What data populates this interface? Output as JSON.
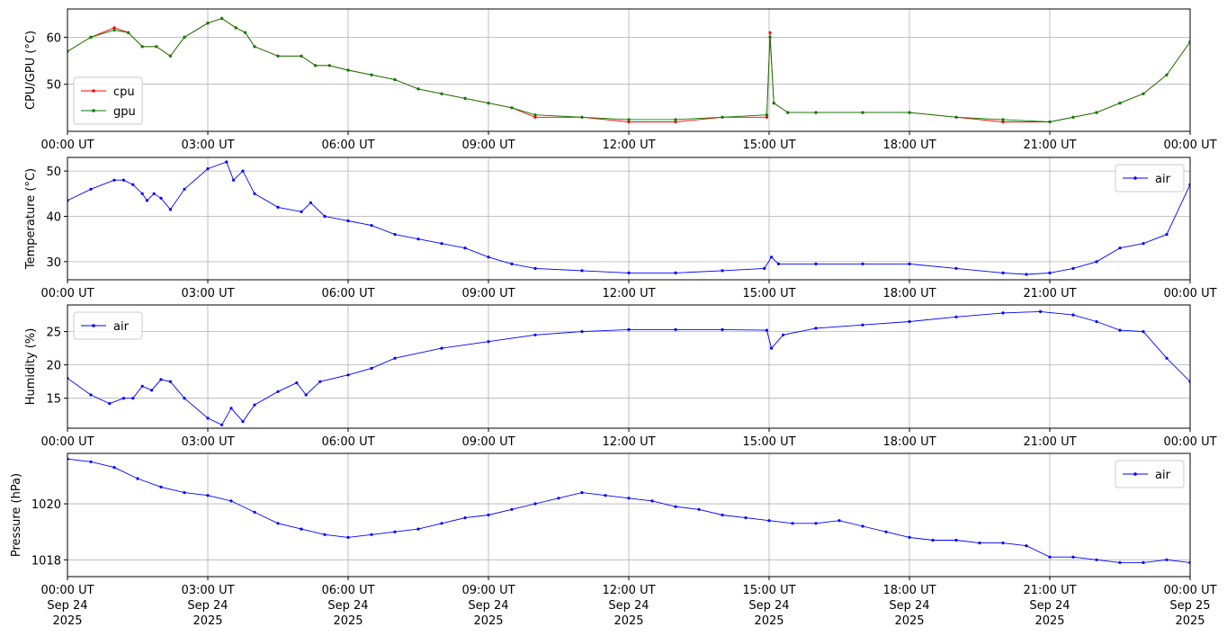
{
  "chart_data": [
    {
      "type": "line",
      "ylabel": "CPU/GPU (°C)",
      "xlim": [
        0,
        24
      ],
      "ylim": [
        40,
        66
      ],
      "yticks": [
        50,
        60
      ],
      "xticks": [
        0,
        3,
        6,
        9,
        12,
        15,
        18,
        21,
        24
      ],
      "xticklabels": [
        "00:00 UT",
        "03:00 UT",
        "06:00 UT",
        "09:00 UT",
        "12:00 UT",
        "15:00 UT",
        "18:00 UT",
        "21:00 UT",
        "00:00 UT"
      ],
      "legend_position": "lower-left",
      "series": [
        {
          "name": "cpu",
          "color": "#ff0000",
          "x": [
            0,
            0.5,
            1,
            1.3,
            1.6,
            1.9,
            2.2,
            2.5,
            3,
            3.3,
            3.6,
            3.8,
            4,
            4.5,
            5,
            5.3,
            5.6,
            6,
            6.5,
            7,
            7.5,
            8,
            8.5,
            9,
            9.5,
            10,
            11,
            12,
            13,
            14,
            14.95,
            15.02,
            15.1,
            15.4,
            16,
            17,
            18,
            19,
            20,
            21,
            21.5,
            22,
            22.5,
            23,
            23.5,
            24
          ],
          "y": [
            57,
            60,
            62,
            61,
            58,
            58,
            56,
            60,
            63,
            64,
            62,
            61,
            58,
            56,
            56,
            54,
            54,
            53,
            52,
            51,
            49,
            48,
            47,
            46,
            45,
            43,
            43,
            42,
            42,
            43,
            43,
            61,
            46,
            44,
            44,
            44,
            44,
            43,
            42,
            42,
            43,
            44,
            46,
            48,
            52,
            59
          ]
        },
        {
          "name": "gpu",
          "color": "#008000",
          "x": [
            0,
            0.5,
            1,
            1.3,
            1.6,
            1.9,
            2.2,
            2.5,
            3,
            3.3,
            3.6,
            3.8,
            4,
            4.5,
            5,
            5.3,
            5.6,
            6,
            6.5,
            7,
            7.5,
            8,
            8.5,
            9,
            9.5,
            10,
            11,
            12,
            13,
            14,
            14.95,
            15.02,
            15.1,
            15.4,
            16,
            17,
            18,
            19,
            20,
            21,
            21.5,
            22,
            22.5,
            23,
            23.5,
            24
          ],
          "y": [
            57,
            60,
            61.5,
            61,
            58,
            58,
            56,
            60,
            63,
            64,
            62,
            61,
            58,
            56,
            56,
            54,
            54,
            53,
            52,
            51,
            49,
            48,
            47,
            46,
            45,
            43.5,
            43,
            42.5,
            42.5,
            43,
            43.5,
            60,
            46,
            44,
            44,
            44,
            44,
            43,
            42.5,
            42,
            43,
            44,
            46,
            48,
            52,
            59
          ]
        }
      ]
    },
    {
      "type": "line",
      "ylabel": "Temperature (°C)",
      "xlim": [
        0,
        24
      ],
      "ylim": [
        26,
        53
      ],
      "yticks": [
        30,
        40,
        50
      ],
      "xticks": [
        0,
        3,
        6,
        9,
        12,
        15,
        18,
        21,
        24
      ],
      "xticklabels": [
        "00:00 UT",
        "03:00 UT",
        "06:00 UT",
        "09:00 UT",
        "12:00 UT",
        "15:00 UT",
        "18:00 UT",
        "21:00 UT",
        "00:00 UT"
      ],
      "legend_position": "upper-right",
      "series": [
        {
          "name": "air",
          "color": "#0000ff",
          "x": [
            0,
            0.5,
            1,
            1.2,
            1.4,
            1.6,
            1.7,
            1.85,
            2,
            2.2,
            2.5,
            3,
            3.4,
            3.55,
            3.75,
            4,
            4.5,
            5,
            5.2,
            5.5,
            6,
            6.5,
            7,
            7.5,
            8,
            8.5,
            9,
            9.5,
            10,
            11,
            12,
            13,
            14,
            14.9,
            15.05,
            15.2,
            16,
            17,
            18,
            19,
            20,
            20.5,
            21,
            21.5,
            22,
            22.5,
            23,
            23.5,
            24
          ],
          "y": [
            43.5,
            46,
            48,
            48,
            47,
            45,
            43.5,
            45,
            44,
            41.5,
            46,
            50.5,
            52,
            48,
            50,
            45,
            42,
            41,
            43,
            40,
            39,
            38,
            36,
            35,
            34,
            33,
            31,
            29.5,
            28.5,
            28,
            27.5,
            27.5,
            28,
            28.5,
            31,
            29.5,
            29.5,
            29.5,
            29.5,
            28.5,
            27.5,
            27.2,
            27.5,
            28.5,
            30,
            33,
            34,
            36,
            47
          ]
        }
      ]
    },
    {
      "type": "line",
      "ylabel": "Humidity (%)",
      "xlim": [
        0,
        24
      ],
      "ylim": [
        10.5,
        29
      ],
      "yticks": [
        15,
        20,
        25
      ],
      "xticks": [
        0,
        3,
        6,
        9,
        12,
        15,
        18,
        21,
        24
      ],
      "xticklabels": [
        "00:00 UT",
        "03:00 UT",
        "06:00 UT",
        "09:00 UT",
        "12:00 UT",
        "15:00 UT",
        "18:00 UT",
        "21:00 UT",
        "00:00 UT"
      ],
      "legend_position": "upper-left",
      "series": [
        {
          "name": "air",
          "color": "#0000ff",
          "x": [
            0,
            0.5,
            0.9,
            1.2,
            1.4,
            1.6,
            1.8,
            2,
            2.2,
            2.5,
            3,
            3.3,
            3.5,
            3.75,
            4,
            4.5,
            4.9,
            5.1,
            5.4,
            6,
            6.5,
            7,
            8,
            9,
            10,
            11,
            12,
            13,
            14,
            14.95,
            15.05,
            15.3,
            16,
            17,
            18,
            19,
            20,
            20.8,
            21.5,
            22,
            22.5,
            23,
            23.5,
            24
          ],
          "y": [
            18,
            15.5,
            14.2,
            15,
            15,
            16.8,
            16.2,
            17.8,
            17.5,
            15,
            12,
            11,
            13.5,
            11.5,
            14,
            16,
            17.3,
            15.5,
            17.5,
            18.5,
            19.5,
            21,
            22.5,
            23.5,
            24.5,
            25,
            25.3,
            25.3,
            25.3,
            25.2,
            22.5,
            24.5,
            25.5,
            26,
            26.5,
            27.2,
            27.8,
            28,
            27.5,
            26.5,
            25.2,
            25,
            21,
            17.5
          ]
        }
      ]
    },
    {
      "type": "line",
      "ylabel": "Pressure (hPa)",
      "xlim": [
        0,
        24
      ],
      "ylim": [
        1017.4,
        1021.8
      ],
      "yticks": [
        1018,
        1020
      ],
      "xticks": [
        0,
        3,
        6,
        9,
        12,
        15,
        18,
        21,
        24
      ],
      "xticklabels": [
        "00:00 UT",
        "03:00 UT",
        "06:00 UT",
        "09:00 UT",
        "12:00 UT",
        "15:00 UT",
        "18:00 UT",
        "21:00 UT",
        "00:00 UT"
      ],
      "xticklabels_date": [
        "Sep 24",
        "Sep 24",
        "Sep 24",
        "Sep 24",
        "Sep 24",
        "Sep 24",
        "Sep 24",
        "Sep 24",
        "Sep 25"
      ],
      "xticklabels_year": [
        "2025",
        "2025",
        "2025",
        "2025",
        "2025",
        "2025",
        "2025",
        "2025",
        "2025"
      ],
      "legend_position": "upper-right",
      "series": [
        {
          "name": "air",
          "color": "#0000ff",
          "x": [
            0,
            0.5,
            1,
            1.5,
            2,
            2.5,
            3,
            3.5,
            4,
            4.5,
            5,
            5.5,
            6,
            6.5,
            7,
            7.5,
            8,
            8.5,
            9,
            9.5,
            10,
            10.5,
            11,
            11.5,
            12,
            12.5,
            13,
            13.5,
            14,
            14.5,
            15,
            15.5,
            16,
            16.5,
            17,
            17.5,
            18,
            18.5,
            19,
            19.5,
            20,
            20.5,
            21,
            21.5,
            22,
            22.5,
            23,
            23.5,
            24
          ],
          "y": [
            1021.6,
            1021.5,
            1021.3,
            1020.9,
            1020.6,
            1020.4,
            1020.3,
            1020.1,
            1019.7,
            1019.3,
            1019.1,
            1018.9,
            1018.8,
            1018.9,
            1019.0,
            1019.1,
            1019.3,
            1019.5,
            1019.6,
            1019.8,
            1020.0,
            1020.2,
            1020.4,
            1020.3,
            1020.2,
            1020.1,
            1019.9,
            1019.8,
            1019.6,
            1019.5,
            1019.4,
            1019.3,
            1019.3,
            1019.4,
            1019.2,
            1019.0,
            1018.8,
            1018.7,
            1018.7,
            1018.6,
            1018.6,
            1018.5,
            1018.1,
            1018.1,
            1018.0,
            1017.9,
            1017.9,
            1018.0,
            1017.9
          ]
        }
      ]
    }
  ]
}
